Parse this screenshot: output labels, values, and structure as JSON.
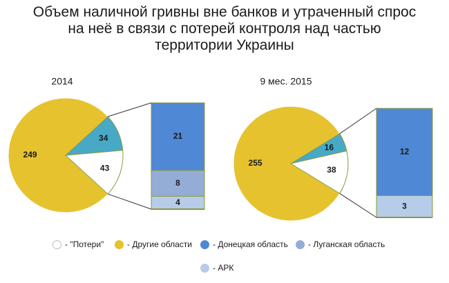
{
  "title_lines": [
    "Объем наличной гривны вне банков и утраченный спрос",
    "на неё в связи с потерей контроля над частью",
    "территории Украины"
  ],
  "chart_data": [
    {
      "type": "bar-of-pie",
      "title": "2014",
      "pie": [
        {
          "name": "Другие области",
          "value": 249
        },
        {
          "name": "Другие области (выделено)",
          "value": 34
        },
        {
          "name": "\"Потери\"",
          "value": 43
        }
      ],
      "breakdown": [
        {
          "name": "Донецкая область",
          "value": 21
        },
        {
          "name": "Луганская область",
          "value": 8
        },
        {
          "name": "АРК",
          "value": 4
        }
      ]
    },
    {
      "type": "bar-of-pie",
      "title": "9 мес. 2015",
      "pie": [
        {
          "name": "Другие области",
          "value": 255
        },
        {
          "name": "Другие области (выделено)",
          "value": 16
        },
        {
          "name": "\"Потери\"",
          "value": 38
        }
      ],
      "breakdown": [
        {
          "name": "Донецкая область",
          "value": 12
        },
        {
          "name": "Луганская область",
          "value": 0
        },
        {
          "name": "АРК",
          "value": 3
        }
      ]
    }
  ],
  "legend": [
    {
      "label": "- \"Потери\"",
      "color": "#ffffff"
    },
    {
      "label": "- Другие области",
      "color": "#e6c22e"
    },
    {
      "label": "- Донецкая область",
      "color": "#4f88d4"
    },
    {
      "label": "- Луганская область",
      "color": "#93add6"
    },
    {
      "label": "- АРК",
      "color": "#b6cce8"
    }
  ],
  "colors": {
    "losses": "#ffffff",
    "other": "#e6c22e",
    "highlight": "#47a9c6",
    "donetsk": "#4f88d4",
    "lugansk": "#93add6",
    "crimea": "#b6cce8",
    "outline": "#8a9a3a"
  }
}
